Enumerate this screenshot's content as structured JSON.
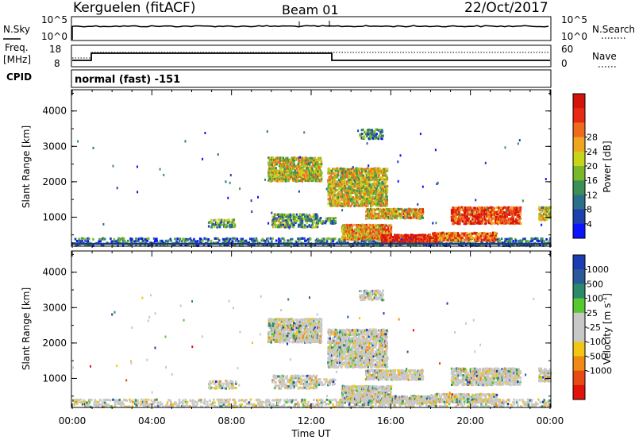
{
  "header": {
    "station": "Kerguelen (fitACF)",
    "beam": "Beam 01",
    "date": "22/Oct/2017"
  },
  "nsky_panel": {
    "left_label": "N.Sky",
    "left_ticks": [
      "10^5",
      "10^0"
    ],
    "right_label": "N.Search",
    "right_ticks": [
      "10^5",
      "10^0"
    ]
  },
  "freq_panel": {
    "left_label_1": "Freq.",
    "left_label_2": "[MHz]",
    "left_ticks": [
      "18",
      "8"
    ],
    "right_label": "Nave",
    "right_ticks": [
      "60",
      "0"
    ]
  },
  "cpid": {
    "label": "CPID",
    "value": "normal (fast) -151"
  },
  "chart_data": [
    {
      "type": "heatmap",
      "id": "power",
      "ylabel": "Slant Range [km]",
      "xlabel": "Time UT",
      "x_ticks": [
        "00:00",
        "04:00",
        "08:00",
        "12:00",
        "16:00",
        "20:00",
        "00:00"
      ],
      "y_ticks": [
        "1000",
        "2000",
        "3000",
        "4000"
      ],
      "ylim": [
        180,
        4600
      ],
      "xlim": [
        0,
        24
      ],
      "colorbar": {
        "label": "Power [dB]",
        "ticks": [
          "4",
          "8",
          "12",
          "16",
          "20",
          "24",
          "28"
        ],
        "colors": [
          "#0a14ff",
          "#1e3fae",
          "#2c6e8c",
          "#3c8f55",
          "#7ab82a",
          "#c8d41a",
          "#f0a51e",
          "#f06a1e",
          "#e82a14",
          "#d4140a"
        ]
      },
      "echo_regions": [
        {
          "t": [
            0.0,
            24.0
          ],
          "r": [
            180,
            420
          ],
          "level": 0.25
        },
        {
          "t": [
            6.8,
            8.2
          ],
          "r": [
            700,
            950
          ],
          "level": 0.35
        },
        {
          "t": [
            9.8,
            12.5
          ],
          "r": [
            2000,
            2700
          ],
          "level": 0.55
        },
        {
          "t": [
            12.8,
            15.8
          ],
          "r": [
            1300,
            2400
          ],
          "level": 0.55
        },
        {
          "t": [
            10.0,
            12.3
          ],
          "r": [
            700,
            1100
          ],
          "level": 0.4
        },
        {
          "t": [
            12.2,
            13.2
          ],
          "r": [
            800,
            1000
          ],
          "level": 0.3
        },
        {
          "t": [
            13.5,
            16.0
          ],
          "r": [
            350,
            800
          ],
          "level": 0.65
        },
        {
          "t": [
            14.7,
            17.6
          ],
          "r": [
            950,
            1250
          ],
          "level": 0.6
        },
        {
          "t": [
            15.5,
            18.3
          ],
          "r": [
            280,
            520
          ],
          "level": 0.95
        },
        {
          "t": [
            18.0,
            21.3
          ],
          "r": [
            320,
            580
          ],
          "level": 0.75
        },
        {
          "t": [
            19.0,
            22.5
          ],
          "r": [
            800,
            1300
          ],
          "level": 0.85
        },
        {
          "t": [
            23.4,
            24.0
          ],
          "r": [
            900,
            1300
          ],
          "level": 0.55
        },
        {
          "t": [
            14.4,
            15.6
          ],
          "r": [
            3200,
            3500
          ],
          "level": 0.3
        }
      ]
    },
    {
      "type": "heatmap",
      "id": "velocity",
      "ylabel": "Slant Range [km]",
      "xlabel": "Time UT",
      "x_ticks": [
        "00:00",
        "04:00",
        "08:00",
        "12:00",
        "16:00",
        "20:00",
        "00:00"
      ],
      "y_ticks": [
        "1000",
        "2000",
        "3000",
        "4000"
      ],
      "ylim": [
        180,
        4600
      ],
      "xlim": [
        0,
        24
      ],
      "colorbar": {
        "label": "Velocity [m s-1]",
        "label_main": "Velocity [m s",
        "label_sup": "-1",
        "label_end": "]",
        "ticks": [
          "1000",
          "500",
          "100",
          "25",
          "-25",
          "-100",
          "-500",
          "-1000"
        ],
        "colors": [
          "#1c3cb4",
          "#2a5a9a",
          "#2c8a6a",
          "#58c832",
          "#c8c8c8",
          "#c8c8c8",
          "#f0c814",
          "#f08a14",
          "#e84a14",
          "#e0140a"
        ]
      }
    }
  ],
  "xaxis_label": "Time UT"
}
